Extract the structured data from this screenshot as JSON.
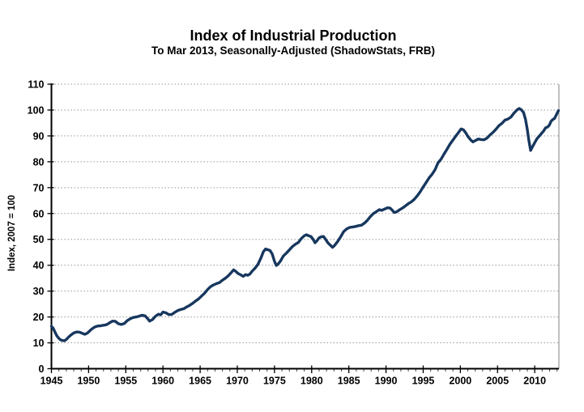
{
  "chart_data": {
    "type": "line",
    "title": "Index of Industrial Production",
    "subtitle": "To Mar 2013, Seasonally-Adjusted (ShadowStats, FRB)",
    "xlabel": "",
    "ylabel": "Index, 2007 = 100",
    "xlim": [
      1945,
      2013.25
    ],
    "ylim": [
      0,
      110
    ],
    "x_ticks": [
      1945,
      1950,
      1955,
      1960,
      1965,
      1970,
      1975,
      1980,
      1985,
      1990,
      1995,
      2000,
      2005,
      2010
    ],
    "x_minor_tick_step": 1,
    "y_ticks": [
      0,
      10,
      20,
      30,
      40,
      50,
      60,
      70,
      80,
      90,
      100,
      110
    ],
    "grid": "horizontal-dotted",
    "legend": "none",
    "line_color": "#17375E",
    "axis_color": "#000000",
    "grid_color": "#999999",
    "border_color": "#808080",
    "series": [
      {
        "name": "Index of Industrial Production",
        "points": [
          [
            1945.0,
            16.4
          ],
          [
            1945.25,
            15.6
          ],
          [
            1945.5,
            14.0
          ],
          [
            1945.75,
            12.6
          ],
          [
            1946.0,
            11.7
          ],
          [
            1946.25,
            11.1
          ],
          [
            1946.5,
            10.9
          ],
          [
            1946.75,
            10.8
          ],
          [
            1947.0,
            11.3
          ],
          [
            1947.3,
            12.2
          ],
          [
            1947.6,
            13.0
          ],
          [
            1948.0,
            13.8
          ],
          [
            1948.4,
            14.2
          ],
          [
            1948.8,
            14.1
          ],
          [
            1949.2,
            13.6
          ],
          [
            1949.5,
            13.3
          ],
          [
            1949.8,
            13.7
          ],
          [
            1950.1,
            14.5
          ],
          [
            1950.4,
            15.3
          ],
          [
            1950.8,
            16.1
          ],
          [
            1951.2,
            16.5
          ],
          [
            1951.6,
            16.6
          ],
          [
            1952.0,
            16.8
          ],
          [
            1952.4,
            17.0
          ],
          [
            1952.8,
            17.7
          ],
          [
            1953.2,
            18.4
          ],
          [
            1953.6,
            18.3
          ],
          [
            1954.0,
            17.4
          ],
          [
            1954.4,
            17.1
          ],
          [
            1954.8,
            17.5
          ],
          [
            1955.2,
            18.6
          ],
          [
            1955.6,
            19.3
          ],
          [
            1956.0,
            19.8
          ],
          [
            1956.4,
            20.0
          ],
          [
            1956.8,
            20.3
          ],
          [
            1957.2,
            20.7
          ],
          [
            1957.6,
            20.4
          ],
          [
            1957.9,
            19.5
          ],
          [
            1958.2,
            18.4
          ],
          [
            1958.6,
            19.0
          ],
          [
            1959.0,
            20.3
          ],
          [
            1959.4,
            21.1
          ],
          [
            1959.7,
            20.8
          ],
          [
            1960.0,
            21.9
          ],
          [
            1960.4,
            21.6
          ],
          [
            1960.8,
            20.9
          ],
          [
            1961.2,
            21.0
          ],
          [
            1961.6,
            21.8
          ],
          [
            1962.0,
            22.5
          ],
          [
            1962.4,
            22.9
          ],
          [
            1962.8,
            23.2
          ],
          [
            1963.2,
            23.9
          ],
          [
            1963.6,
            24.5
          ],
          [
            1964.0,
            25.3
          ],
          [
            1964.4,
            26.2
          ],
          [
            1964.8,
            27.0
          ],
          [
            1965.2,
            28.1
          ],
          [
            1965.6,
            29.2
          ],
          [
            1966.0,
            30.6
          ],
          [
            1966.4,
            31.7
          ],
          [
            1966.8,
            32.4
          ],
          [
            1967.2,
            32.9
          ],
          [
            1967.6,
            33.3
          ],
          [
            1968.0,
            34.2
          ],
          [
            1968.4,
            35.0
          ],
          [
            1968.8,
            36.0
          ],
          [
            1969.2,
            37.2
          ],
          [
            1969.5,
            38.2
          ],
          [
            1969.8,
            37.6
          ],
          [
            1970.1,
            36.8
          ],
          [
            1970.5,
            36.2
          ],
          [
            1970.8,
            35.7
          ],
          [
            1971.1,
            36.4
          ],
          [
            1971.4,
            36.1
          ],
          [
            1971.7,
            36.6
          ],
          [
            1972.0,
            37.7
          ],
          [
            1972.4,
            38.9
          ],
          [
            1972.8,
            40.5
          ],
          [
            1973.2,
            43.0
          ],
          [
            1973.5,
            45.2
          ],
          [
            1973.8,
            46.3
          ],
          [
            1974.1,
            46.0
          ],
          [
            1974.4,
            45.7
          ],
          [
            1974.7,
            44.3
          ],
          [
            1975.0,
            41.5
          ],
          [
            1975.25,
            39.9
          ],
          [
            1975.5,
            40.5
          ],
          [
            1975.8,
            41.6
          ],
          [
            1976.2,
            43.6
          ],
          [
            1976.6,
            44.7
          ],
          [
            1977.0,
            45.9
          ],
          [
            1977.4,
            47.2
          ],
          [
            1977.8,
            48.1
          ],
          [
            1978.2,
            48.8
          ],
          [
            1978.6,
            50.3
          ],
          [
            1979.0,
            51.4
          ],
          [
            1979.3,
            51.8
          ],
          [
            1979.6,
            51.4
          ],
          [
            1979.9,
            51.1
          ],
          [
            1980.2,
            50.0
          ],
          [
            1980.45,
            48.7
          ],
          [
            1980.7,
            49.4
          ],
          [
            1981.0,
            50.6
          ],
          [
            1981.3,
            51.0
          ],
          [
            1981.6,
            51.1
          ],
          [
            1981.9,
            49.9
          ],
          [
            1982.2,
            48.6
          ],
          [
            1982.5,
            47.8
          ],
          [
            1982.8,
            46.9
          ],
          [
            1983.1,
            47.7
          ],
          [
            1983.5,
            49.2
          ],
          [
            1983.9,
            51.0
          ],
          [
            1984.3,
            53.0
          ],
          [
            1984.7,
            54.0
          ],
          [
            1985.1,
            54.6
          ],
          [
            1985.5,
            54.8
          ],
          [
            1985.9,
            55.0
          ],
          [
            1986.3,
            55.3
          ],
          [
            1986.7,
            55.5
          ],
          [
            1987.1,
            56.3
          ],
          [
            1987.5,
            57.4
          ],
          [
            1987.9,
            58.8
          ],
          [
            1988.3,
            60.0
          ],
          [
            1988.7,
            60.7
          ],
          [
            1989.1,
            61.5
          ],
          [
            1989.4,
            61.2
          ],
          [
            1989.8,
            61.7
          ],
          [
            1990.2,
            62.2
          ],
          [
            1990.55,
            62.1
          ],
          [
            1990.8,
            61.4
          ],
          [
            1991.1,
            60.4
          ],
          [
            1991.4,
            60.6
          ],
          [
            1991.8,
            61.4
          ],
          [
            1992.2,
            62.1
          ],
          [
            1992.6,
            62.9
          ],
          [
            1993.0,
            63.8
          ],
          [
            1993.4,
            64.5
          ],
          [
            1993.8,
            65.5
          ],
          [
            1994.2,
            66.8
          ],
          [
            1994.6,
            68.4
          ],
          [
            1995.0,
            70.3
          ],
          [
            1995.4,
            72.0
          ],
          [
            1995.8,
            73.8
          ],
          [
            1996.2,
            75.2
          ],
          [
            1996.6,
            77.0
          ],
          [
            1997.0,
            79.6
          ],
          [
            1997.4,
            81.0
          ],
          [
            1997.8,
            83.0
          ],
          [
            1998.2,
            84.8
          ],
          [
            1998.6,
            86.8
          ],
          [
            1999.0,
            88.4
          ],
          [
            1999.4,
            90.0
          ],
          [
            1999.8,
            91.5
          ],
          [
            2000.1,
            92.7
          ],
          [
            2000.4,
            92.4
          ],
          [
            2000.7,
            91.3
          ],
          [
            2001.0,
            89.8
          ],
          [
            2001.4,
            88.4
          ],
          [
            2001.7,
            87.7
          ],
          [
            2002.0,
            88.2
          ],
          [
            2002.4,
            88.8
          ],
          [
            2002.8,
            88.6
          ],
          [
            2003.2,
            88.5
          ],
          [
            2003.6,
            89.2
          ],
          [
            2004.0,
            90.4
          ],
          [
            2004.4,
            91.4
          ],
          [
            2004.8,
            92.6
          ],
          [
            2005.2,
            94.0
          ],
          [
            2005.6,
            94.9
          ],
          [
            2006.0,
            96.1
          ],
          [
            2006.4,
            96.5
          ],
          [
            2006.8,
            97.3
          ],
          [
            2007.2,
            98.8
          ],
          [
            2007.6,
            100.0
          ],
          [
            2007.9,
            100.6
          ],
          [
            2008.2,
            100.1
          ],
          [
            2008.5,
            99.0
          ],
          [
            2008.75,
            96.5
          ],
          [
            2009.0,
            92.5
          ],
          [
            2009.2,
            88.5
          ],
          [
            2009.45,
            84.4
          ],
          [
            2009.7,
            85.8
          ],
          [
            2010.0,
            87.4
          ],
          [
            2010.3,
            88.9
          ],
          [
            2010.6,
            89.9
          ],
          [
            2010.9,
            90.9
          ],
          [
            2011.2,
            91.9
          ],
          [
            2011.45,
            93.1
          ],
          [
            2011.7,
            93.4
          ],
          [
            2011.95,
            94.1
          ],
          [
            2012.2,
            95.7
          ],
          [
            2012.45,
            96.4
          ],
          [
            2012.65,
            96.7
          ],
          [
            2012.85,
            97.8
          ],
          [
            2013.05,
            99.0
          ],
          [
            2013.2,
            99.8
          ]
        ]
      }
    ]
  }
}
